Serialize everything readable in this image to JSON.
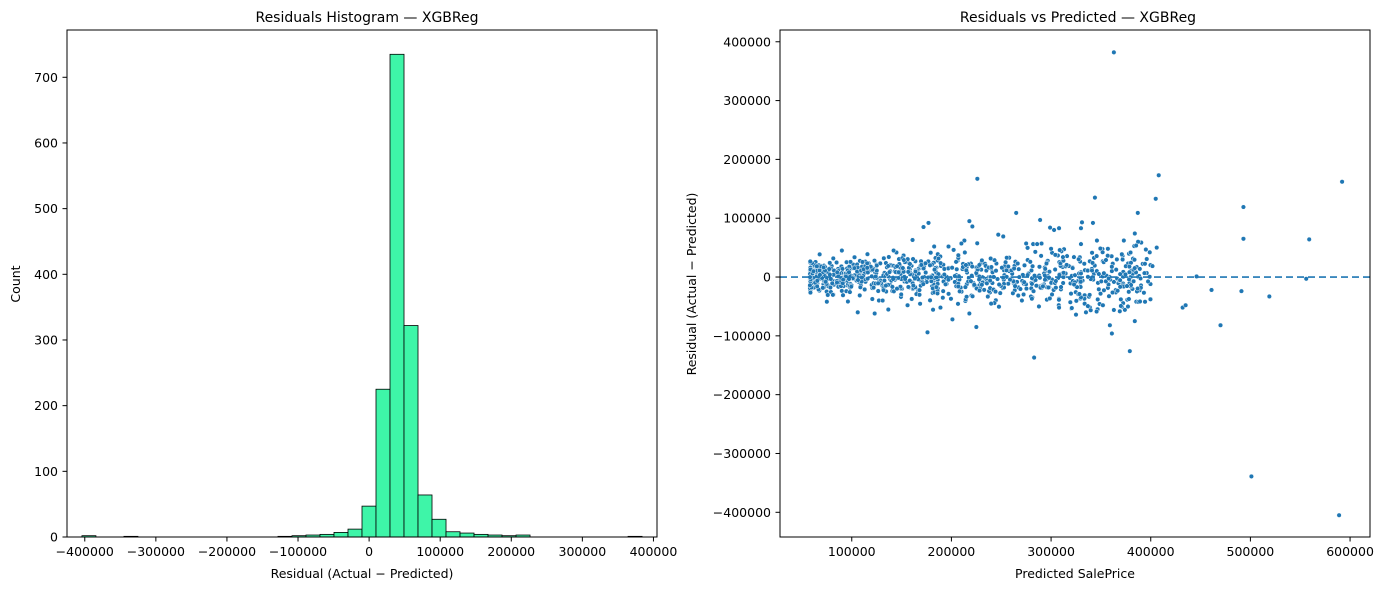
{
  "chart_data": [
    {
      "type": "bar",
      "title": "Residuals Histogram — XGBReg",
      "xlabel": "Residual (Actual − Predicted)",
      "ylabel": "Count",
      "xlim": [
        -425000,
        405000
      ],
      "ylim": [
        0,
        772
      ],
      "xticks": [
        -400000,
        -300000,
        -200000,
        -100000,
        0,
        100000,
        200000,
        300000,
        400000
      ],
      "xtick_labels": [
        "−400000",
        "−300000",
        "−200000",
        "−100000",
        "0",
        "100000",
        "200000",
        "300000",
        "400000"
      ],
      "yticks": [
        0,
        100,
        200,
        300,
        400,
        500,
        600,
        700
      ],
      "ytick_labels": [
        "0",
        "100",
        "200",
        "300",
        "400",
        "500",
        "600",
        "700"
      ],
      "bins": {
        "start": -404000,
        "width": 19700,
        "count": 40
      },
      "values": [
        2,
        0,
        0,
        1,
        0,
        0,
        0,
        0,
        0,
        0,
        0,
        0,
        0,
        0,
        1,
        2,
        3,
        4,
        7,
        12,
        47,
        225,
        735,
        322,
        64,
        27,
        8,
        6,
        4,
        3,
        2,
        3,
        0,
        0,
        0,
        0,
        0,
        0,
        0,
        1
      ],
      "bar_fill": "#3ef5a8",
      "bar_edge": "#000000",
      "grid": false,
      "legend": "none"
    },
    {
      "type": "scatter",
      "title": "Residuals vs Predicted — XGBReg",
      "xlabel": "Predicted SalePrice",
      "ylabel": "Residual (Actual − Predicted)",
      "xlim": [
        28000,
        620000
      ],
      "ylim": [
        -442000,
        420000
      ],
      "xticks": [
        100000,
        200000,
        300000,
        400000,
        500000,
        600000
      ],
      "xtick_labels": [
        "100000",
        "200000",
        "300000",
        "400000",
        "500000",
        "600000"
      ],
      "yticks": [
        -400000,
        -300000,
        -200000,
        -100000,
        0,
        100000,
        200000,
        300000,
        400000
      ],
      "ytick_labels": [
        "−400000",
        "−300000",
        "−200000",
        "−100000",
        "0",
        "100000",
        "200000",
        "300000",
        "400000"
      ],
      "point_color": "#1f77b4",
      "reference_line": {
        "y": 0,
        "style": "dashed",
        "color": "#1f77b4"
      },
      "points": [
        [
          363000,
          382000
        ],
        [
          226000,
          167000
        ],
        [
          408000,
          173000
        ],
        [
          592000,
          162000
        ],
        [
          493000,
          119000
        ],
        [
          265000,
          109000
        ],
        [
          387000,
          109000
        ],
        [
          405000,
          133000
        ],
        [
          344000,
          135000
        ],
        [
          218000,
          95000
        ],
        [
          289000,
          97000
        ],
        [
          177000,
          92000
        ],
        [
          331000,
          93000
        ],
        [
          342000,
          92000
        ],
        [
          221000,
          86000
        ],
        [
          172000,
          85000
        ],
        [
          299000,
          84000
        ],
        [
          308000,
          83000
        ],
        [
          303000,
          80000
        ],
        [
          330000,
          83000
        ],
        [
          247000,
          72000
        ],
        [
          252000,
          69000
        ],
        [
          384000,
          74000
        ],
        [
          161000,
          63000
        ],
        [
          213000,
          62000
        ],
        [
          493000,
          65000
        ],
        [
          559000,
          64000
        ],
        [
          346000,
          62000
        ],
        [
          373000,
          62000
        ],
        [
          210000,
          57000
        ],
        [
          330000,
          56000
        ],
        [
          282000,
          56000
        ],
        [
          275000,
          57000
        ],
        [
          406000,
          50000
        ],
        [
          300000,
          48000
        ],
        [
          290000,
          36000
        ],
        [
          366000,
          30000
        ],
        [
          357000,
          48000
        ],
        [
          399000,
          42000
        ],
        [
          286000,
          56000
        ],
        [
          283000,
          -137000
        ],
        [
          379000,
          -126000
        ],
        [
          225000,
          -85000
        ],
        [
          176000,
          -94000
        ],
        [
          361000,
          -96000
        ],
        [
          359000,
          -82000
        ],
        [
          470000,
          -82000
        ],
        [
          201000,
          -72000
        ],
        [
          218000,
          -62000
        ],
        [
          123000,
          -62000
        ],
        [
          106000,
          -60000
        ],
        [
          325000,
          -64000
        ],
        [
          308000,
          -52000
        ],
        [
          335000,
          -60000
        ],
        [
          352000,
          -48000
        ],
        [
          432000,
          -52000
        ],
        [
          435000,
          -48000
        ],
        [
          384000,
          -75000
        ],
        [
          363000,
          -56000
        ],
        [
          370000,
          -38000
        ],
        [
          461000,
          -22000
        ],
        [
          491000,
          -24000
        ],
        [
          519000,
          -33000
        ],
        [
          446000,
          1000
        ],
        [
          556000,
          -3000
        ],
        [
          501000,
          -339000
        ],
        [
          589000,
          -405000
        ],
        [
          131000,
          -40000
        ],
        [
          142000,
          45000
        ],
        [
          156000,
          -48000
        ],
        [
          189000,
          -52000
        ],
        [
          75000,
          -42000
        ]
      ],
      "cluster": {
        "count": 960,
        "x_range": [
          58000,
          402000
        ],
        "y_sd": 15500
      },
      "grid": false,
      "legend": "none"
    }
  ]
}
